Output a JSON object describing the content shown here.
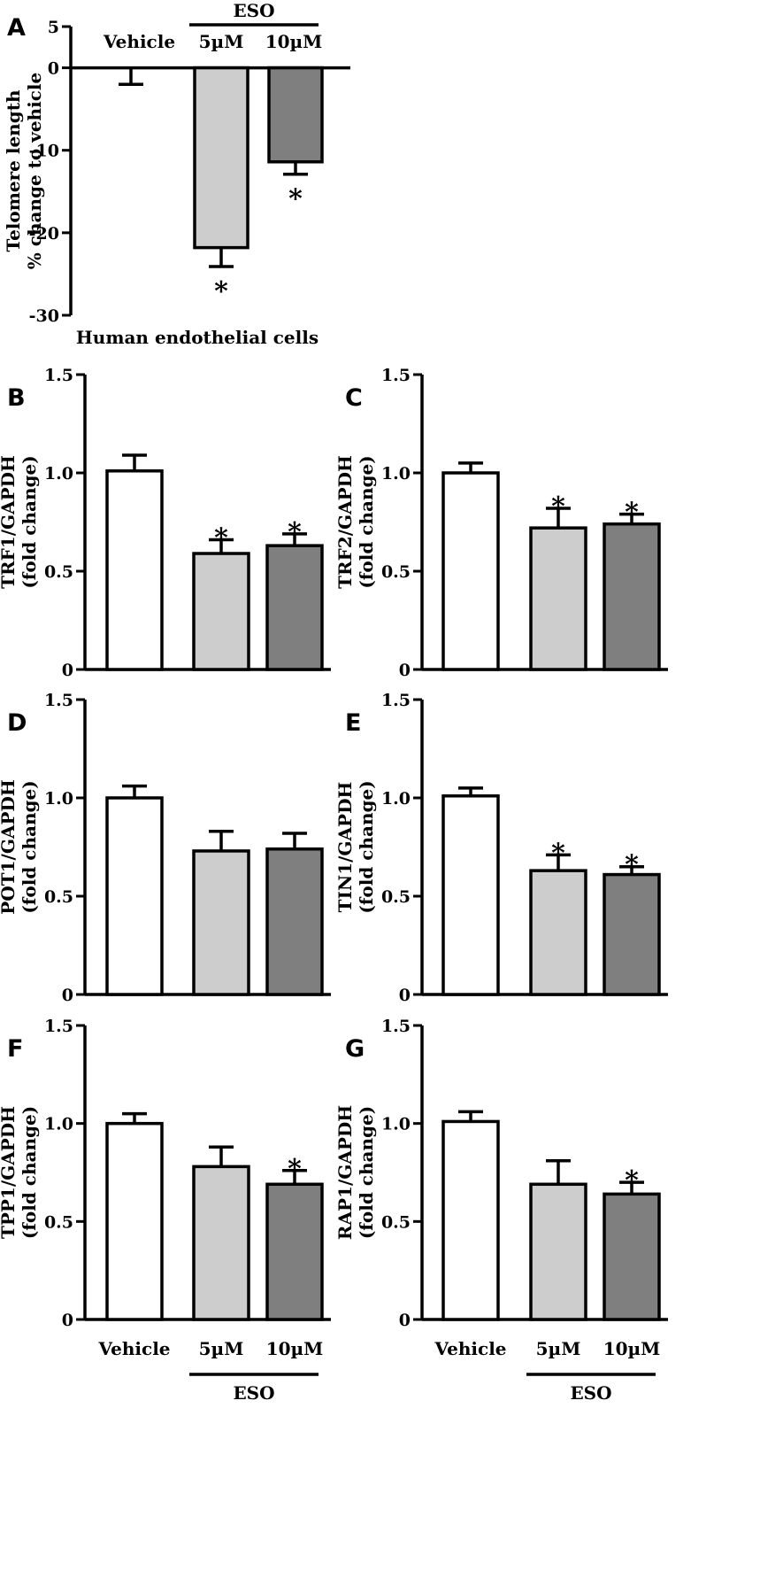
{
  "colors": {
    "vehicle": "#ffffff",
    "eso_5uM": "#cdcdcd",
    "eso_10uM": "#7f7f7f",
    "stroke": "#000000"
  },
  "chart_data": [
    {
      "panel": "A",
      "type": "bar",
      "ylabel": [
        "Telomere length",
        "% change to vehicle"
      ],
      "ylim": [
        -30,
        5
      ],
      "yticks": [
        "5",
        "0",
        "-10",
        "-20",
        "-30"
      ],
      "categories": [
        "Vehicle",
        "5µM",
        "10µM"
      ],
      "group_label": "ESO",
      "bottom_label": "Human  endothelial  cells",
      "values": [
        0,
        -21.8,
        -11.4
      ],
      "errors": [
        2.0,
        2.3,
        1.5
      ],
      "significant": [
        false,
        true,
        true
      ]
    },
    {
      "panel": "B",
      "type": "bar",
      "ylabel": [
        "TRF1/GAPDH",
        "(fold change)"
      ],
      "ylim": [
        0,
        1.5
      ],
      "yticks": [
        "1.5",
        "1.0",
        "0.5",
        "0"
      ],
      "categories": [
        "Vehicle",
        "5µM",
        "10µM"
      ],
      "values": [
        1.01,
        0.59,
        0.63
      ],
      "errors": [
        0.08,
        0.07,
        0.06
      ],
      "significant": [
        false,
        true,
        true
      ]
    },
    {
      "panel": "C",
      "type": "bar",
      "ylabel": [
        "TRF2/GAPDH",
        "(fold change)"
      ],
      "ylim": [
        0,
        1.5
      ],
      "yticks": [
        "1.5",
        "1.0",
        "0.5",
        "0"
      ],
      "categories": [
        "Vehicle",
        "5µM",
        "10µM"
      ],
      "values": [
        1.0,
        0.72,
        0.74
      ],
      "errors": [
        0.05,
        0.1,
        0.05
      ],
      "significant": [
        false,
        true,
        true
      ]
    },
    {
      "panel": "D",
      "type": "bar",
      "ylabel": [
        "POT1/GAPDH",
        "(fold change)"
      ],
      "ylim": [
        0,
        1.5
      ],
      "yticks": [
        "1.5",
        "1.0",
        "0.5",
        "0"
      ],
      "categories": [
        "Vehicle",
        "5µM",
        "10µM"
      ],
      "values": [
        1.0,
        0.73,
        0.74
      ],
      "errors": [
        0.06,
        0.1,
        0.08
      ],
      "significant": [
        false,
        false,
        false
      ]
    },
    {
      "panel": "E",
      "type": "bar",
      "ylabel": [
        "TIN1/GAPDH",
        "(fold change)"
      ],
      "ylim": [
        0,
        1.5
      ],
      "yticks": [
        "1.5",
        "1.0",
        "0.5",
        "0"
      ],
      "categories": [
        "Vehicle",
        "5µM",
        "10µM"
      ],
      "values": [
        1.01,
        0.63,
        0.61
      ],
      "errors": [
        0.04,
        0.08,
        0.04
      ],
      "significant": [
        false,
        true,
        true
      ]
    },
    {
      "panel": "F",
      "type": "bar",
      "ylabel": [
        "TPP1/GAPDH",
        "(fold change)"
      ],
      "ylim": [
        0,
        1.5
      ],
      "yticks": [
        "1.5",
        "1.0",
        "0.5",
        "0"
      ],
      "categories": [
        "Vehicle",
        "5µM",
        "10µM"
      ],
      "values": [
        1.0,
        0.78,
        0.69
      ],
      "errors": [
        0.05,
        0.1,
        0.07
      ],
      "significant": [
        false,
        false,
        true
      ]
    },
    {
      "panel": "G",
      "type": "bar",
      "ylabel": [
        "RAP1/GAPDH",
        "(fold change)"
      ],
      "ylim": [
        0,
        1.5
      ],
      "yticks": [
        "1.5",
        "1.0",
        "0.5",
        "0"
      ],
      "categories": [
        "Vehicle",
        "5µM",
        "10µM"
      ],
      "values": [
        1.01,
        0.69,
        0.64
      ],
      "errors": [
        0.05,
        0.12,
        0.06
      ],
      "significant": [
        false,
        false,
        true
      ]
    }
  ],
  "bottom_categories": [
    "Vehicle",
    "5µM",
    "10µM"
  ],
  "bottom_group_label": "ESO"
}
